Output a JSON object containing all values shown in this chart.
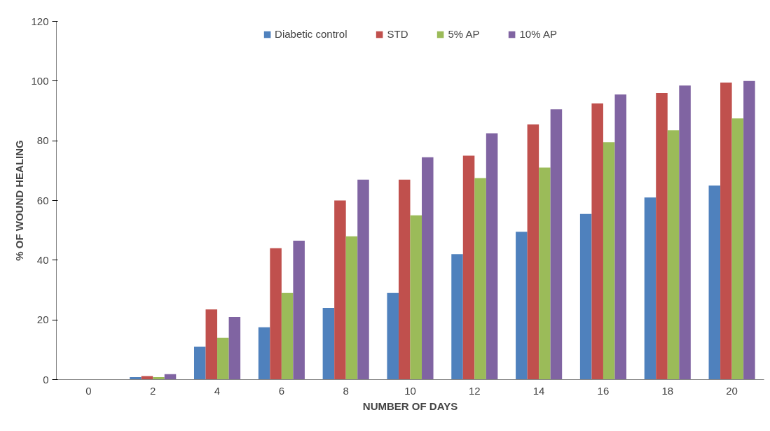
{
  "chart_data": {
    "type": "bar",
    "xlabel": "NUMBER OF DAYS",
    "ylabel": "% OF WOUND HEALING",
    "categories": [
      "0",
      "2",
      "4",
      "6",
      "8",
      "10",
      "12",
      "14",
      "16",
      "18",
      "20"
    ],
    "series": [
      {
        "name": "Diabetic control",
        "color": "#4f81bd",
        "values": [
          0,
          0.8,
          11,
          17.5,
          24,
          29,
          42,
          49.5,
          55.5,
          61,
          65
        ]
      },
      {
        "name": "STD",
        "color": "#c0504d",
        "values": [
          0,
          1.2,
          23.5,
          44,
          60,
          67,
          75,
          85.5,
          92.5,
          96,
          99.5
        ]
      },
      {
        "name": "5% AP",
        "color": "#9bbb59",
        "values": [
          0,
          0.8,
          14,
          29,
          48,
          55,
          67.5,
          71,
          79.5,
          83.5,
          87.5
        ]
      },
      {
        "name": "10% AP",
        "color": "#8064a2",
        "values": [
          0,
          1.8,
          21,
          46.5,
          67,
          74.5,
          82.5,
          90.5,
          95.5,
          98.5,
          100
        ]
      }
    ],
    "ylim": [
      0,
      120
    ],
    "yticks": [
      0,
      20,
      40,
      60,
      80,
      100,
      120
    ],
    "grid": false,
    "legend": "top"
  }
}
